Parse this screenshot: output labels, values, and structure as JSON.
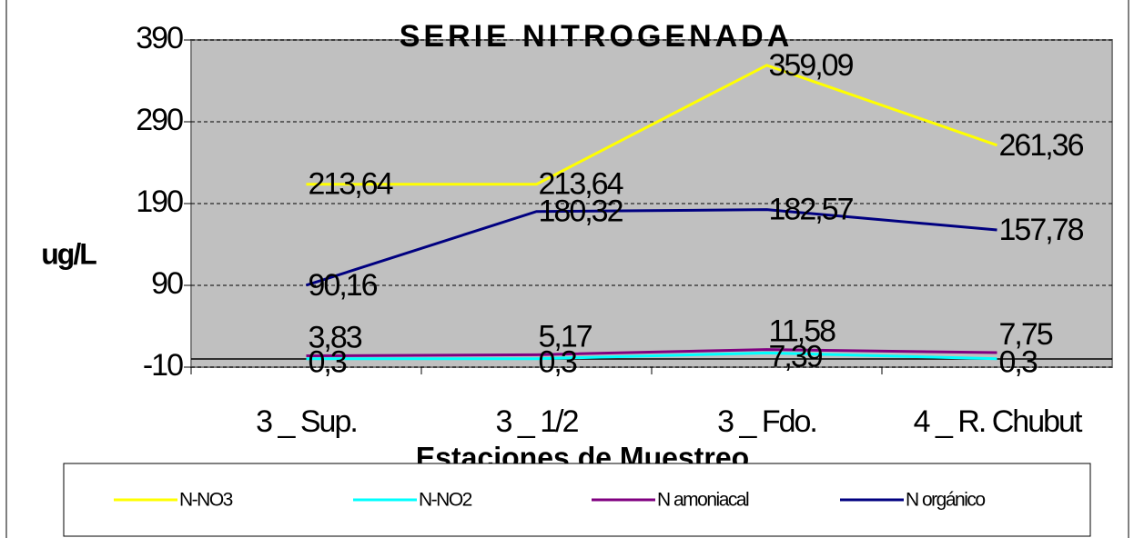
{
  "chart_data": {
    "type": "line",
    "title": "SERIE NITROGENADA",
    "x_label": "Estaciones de Muestreo",
    "y_label": "ug/L",
    "categories": [
      "3 _ Sup.",
      "3 _ 1/2",
      "3 _ Fdo.",
      "4 _ R. Chubut"
    ],
    "series": [
      {
        "name": "N-NO3",
        "color": "#ffff00",
        "values": [
          213.64,
          213.64,
          359.09,
          261.36
        ],
        "value_labels": [
          "213,64",
          "213,64",
          "359,09",
          "261,36"
        ]
      },
      {
        "name": "N-NO2",
        "color": "#00ffff",
        "values": [
          0.3,
          0.3,
          7.39,
          0.3
        ],
        "value_labels": [
          "0,3",
          "0,3",
          "7,39",
          "0,3"
        ]
      },
      {
        "name": "N amoniacal",
        "color": "#800080",
        "values": [
          3.83,
          5.17,
          11.58,
          7.75
        ],
        "value_labels": [
          "3,83",
          "5,17",
          "11,58",
          "7,75"
        ]
      },
      {
        "name": "N orgánico",
        "color": "#000080",
        "values": [
          90.16,
          180.32,
          182.57,
          157.78
        ],
        "value_labels": [
          "90,16",
          "180,32",
          "182,57",
          "157,78"
        ]
      }
    ],
    "ylim": [
      -10,
      390
    ],
    "yticks": [
      -10,
      90,
      190,
      290,
      390
    ],
    "grid": true,
    "legend": "bottom"
  }
}
